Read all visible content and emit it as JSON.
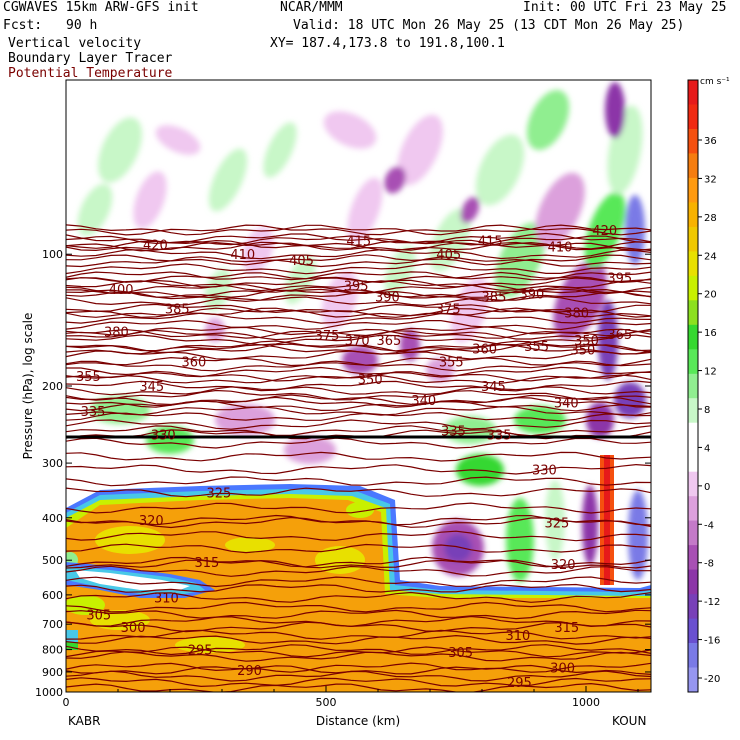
{
  "header": {
    "model": "CGWAVES 15km ARW-GFS init",
    "org": "NCAR/MMM",
    "init": "Init: 00 UTC Fri 23 May 25",
    "fcst_label": "Fcst:",
    "fcst_value": "90 h",
    "valid": "Valid: 18 UTC Mon 26 May 25 (13 CDT Mon 26 May 25)",
    "xy": "XY= 187.4,173.8 to 191.8,100.1"
  },
  "fields": {
    "shaded": "Vertical velocity",
    "shaded2": "Boundary Layer Tracer",
    "contour": "Potential Temperature"
  },
  "colors": {
    "contour": "#7a0000",
    "tropopause_line": "#000000",
    "background": "#ffffff"
  },
  "chart_data": {
    "type": "heatmap",
    "xlabel": "Distance (km)",
    "ylabel": "Pressure (hPa), log scale",
    "x_ticks": [
      0,
      500,
      1000
    ],
    "xlim": [
      0,
      1125
    ],
    "y_ticks": [
      100,
      200,
      300,
      400,
      500,
      600,
      700,
      800,
      900,
      1000
    ],
    "ylim": [
      1000,
      40
    ],
    "y_scale": "log",
    "endpoints": {
      "left": "KABR",
      "right": "KOUN"
    },
    "colorbar": {
      "units": "cm s⁻¹",
      "labels": [
        "36",
        "32",
        "28",
        "24",
        "20",
        "16",
        "12",
        "8",
        "4",
        "0",
        "-4",
        "-8",
        "-12",
        "-16",
        "-20"
      ],
      "colors": [
        "#e61a1a",
        "#f02a12",
        "#f5500f",
        "#f57d0f",
        "#ff9a10",
        "#f8b200",
        "#f0c800",
        "#e8e000",
        "#c8f000",
        "#8ce020",
        "#36d830",
        "#58e858",
        "#90ee90",
        "#c8f7c8",
        "#ffffff",
        "#ffffff",
        "#f0c8f0",
        "#dca0dc",
        "#c47ac8",
        "#a850b4",
        "#8c36a8",
        "#7840b8",
        "#6a50d0",
        "#7a7ae6",
        "#9696f0"
      ]
    },
    "theta_contours": [
      {
        "label": "420",
        "x": 172,
        "p": 95
      },
      {
        "label": "410",
        "x": 340,
        "p": 100
      },
      {
        "label": "405",
        "x": 453,
        "p": 103
      },
      {
        "label": "415",
        "x": 563,
        "p": 93
      },
      {
        "label": "405",
        "x": 736,
        "p": 100
      },
      {
        "label": "415",
        "x": 816,
        "p": 93
      },
      {
        "label": "410",
        "x": 950,
        "p": 96
      },
      {
        "label": "420",
        "x": 1036,
        "p": 88
      },
      {
        "label": "400",
        "x": 106,
        "p": 120
      },
      {
        "label": "385",
        "x": 214,
        "p": 133
      },
      {
        "label": "395",
        "x": 558,
        "p": 118
      },
      {
        "label": "390",
        "x": 618,
        "p": 125
      },
      {
        "label": "375",
        "x": 735,
        "p": 133
      },
      {
        "label": "385",
        "x": 823,
        "p": 125
      },
      {
        "label": "390",
        "x": 896,
        "p": 123
      },
      {
        "label": "380",
        "x": 982,
        "p": 136
      },
      {
        "label": "395",
        "x": 1065,
        "p": 113
      },
      {
        "label": "380",
        "x": 97,
        "p": 150
      },
      {
        "label": "375",
        "x": 502,
        "p": 153
      },
      {
        "label": "370",
        "x": 560,
        "p": 157
      },
      {
        "label": "365",
        "x": 621,
        "p": 157
      },
      {
        "label": "350",
        "x": 1001,
        "p": 157
      },
      {
        "label": "365",
        "x": 1065,
        "p": 152
      },
      {
        "label": "360",
        "x": 805,
        "p": 164
      },
      {
        "label": "355",
        "x": 905,
        "p": 162
      },
      {
        "label": "350",
        "x": 994,
        "p": 165
      },
      {
        "label": "360",
        "x": 246,
        "p": 176
      },
      {
        "label": "355",
        "x": 741,
        "p": 176
      },
      {
        "label": "355",
        "x": 43,
        "p": 190
      },
      {
        "label": "345",
        "x": 165,
        "p": 200
      },
      {
        "label": "350",
        "x": 585,
        "p": 193
      },
      {
        "label": "345",
        "x": 822,
        "p": 200
      },
      {
        "label": "340",
        "x": 688,
        "p": 215
      },
      {
        "label": "340",
        "x": 962,
        "p": 218
      },
      {
        "label": "335",
        "x": 52,
        "p": 228
      },
      {
        "label": "330",
        "x": 187,
        "p": 258
      },
      {
        "label": "335",
        "x": 745,
        "p": 253
      },
      {
        "label": "335",
        "x": 833,
        "p": 258
      },
      {
        "label": "330",
        "x": 920,
        "p": 310
      },
      {
        "label": "325",
        "x": 294,
        "p": 350
      },
      {
        "label": "325",
        "x": 944,
        "p": 410
      },
      {
        "label": "320",
        "x": 164,
        "p": 405
      },
      {
        "label": "320",
        "x": 956,
        "p": 510
      },
      {
        "label": "315",
        "x": 271,
        "p": 505
      },
      {
        "label": "310",
        "x": 193,
        "p": 608
      },
      {
        "label": "305",
        "x": 63,
        "p": 665
      },
      {
        "label": "300",
        "x": 129,
        "p": 710
      },
      {
        "label": "295",
        "x": 258,
        "p": 800
      },
      {
        "label": "290",
        "x": 353,
        "p": 890
      },
      {
        "label": "315",
        "x": 963,
        "p": 710
      },
      {
        "label": "310",
        "x": 869,
        "p": 740
      },
      {
        "label": "305",
        "x": 759,
        "p": 810
      },
      {
        "label": "300",
        "x": 955,
        "p": 880
      },
      {
        "label": "295",
        "x": 872,
        "p": 950
      }
    ]
  }
}
